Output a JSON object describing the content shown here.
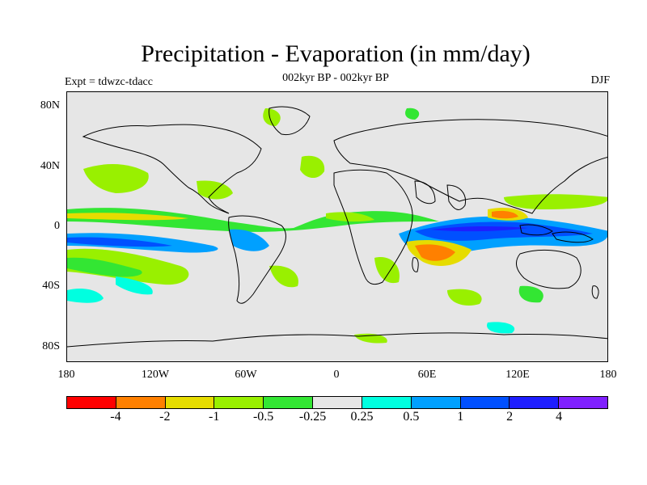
{
  "title": "Precipitation - Evaporation (in mm/day)",
  "subtitle": "002kyr BP - 002kyr BP",
  "experiment_label": "Expt = tdwzc-tdacc",
  "season_label": "DJF",
  "map": {
    "projection": "cylindrical equidistant",
    "background_color": "#e6e6e6",
    "lat_range": [
      -90,
      90
    ],
    "lon_range": [
      -180,
      180
    ],
    "y_tick_labels": [
      "80N",
      "40N",
      "0",
      "40S",
      "80S"
    ],
    "x_tick_labels": [
      "180",
      "120W",
      "60W",
      "0",
      "60E",
      "120E",
      "180"
    ]
  },
  "colorbar": {
    "colors": [
      "#ff0000",
      "#ff8000",
      "#e6dc00",
      "#99f000",
      "#33e633",
      "#e6e6e6",
      "#00ffe0",
      "#00a0ff",
      "#0050ff",
      "#1e1eff",
      "#8020ff"
    ],
    "tick_labels": [
      "-4",
      "-2",
      "-1",
      "-0.5",
      "-0.25",
      "0.25",
      "0.5",
      "1",
      "2",
      "4"
    ]
  }
}
